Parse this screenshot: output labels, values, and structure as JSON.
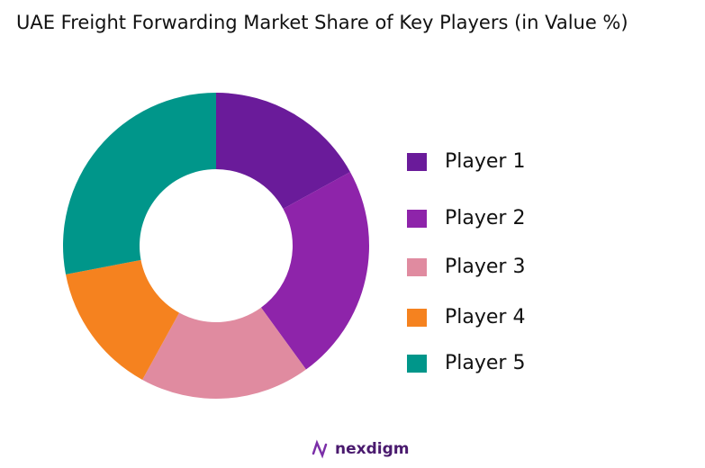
{
  "chart_data": {
    "type": "donut",
    "title": "UAE Freight Forwarding Market Share of Key Players (in Value %)",
    "categories": [
      "Player 1",
      "Player 2",
      "Player 3",
      "Player 4",
      "Player 5"
    ],
    "values": [
      17,
      23,
      18,
      14,
      28
    ],
    "colors": [
      "#6a1b9a",
      "#8e24aa",
      "#e08ba0",
      "#f5821f",
      "#00968a"
    ],
    "legend": "right"
  },
  "brand": "nexdigm"
}
